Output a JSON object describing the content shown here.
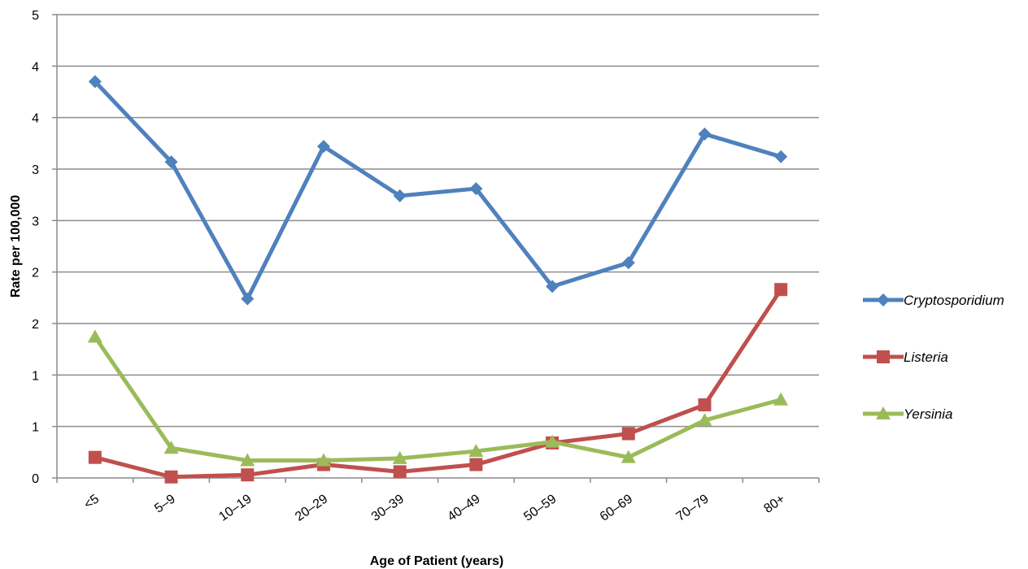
{
  "chart_data": {
    "type": "line",
    "title": "",
    "xlabel": "Age of Patient (years)",
    "ylabel": "Rate per 100,000",
    "categories": [
      "<5",
      "5–9",
      "10–19",
      "20–29",
      "30–39",
      "40–49",
      "50–59",
      "60–69",
      "70–79",
      "80+"
    ],
    "y_tick_labels": [
      "0",
      "1",
      "1",
      "2",
      "2",
      "3",
      "3",
      "4",
      "4",
      "5"
    ],
    "ylim": [
      0,
      4.5
    ],
    "y_tick_step": 0.5,
    "grid": true,
    "legend_position": "right",
    "series": [
      {
        "name": "Cryptosporidium",
        "color": "#4F81BD",
        "marker": "diamond",
        "values": [
          3.85,
          3.07,
          1.74,
          3.22,
          2.74,
          2.81,
          1.86,
          2.09,
          3.34,
          3.12
        ]
      },
      {
        "name": "Listeria",
        "color": "#C0504D",
        "marker": "square",
        "values": [
          0.2,
          0.01,
          0.03,
          0.13,
          0.06,
          0.13,
          0.34,
          0.43,
          0.71,
          1.83
        ]
      },
      {
        "name": "Yersinia",
        "color": "#9BBB59",
        "marker": "triangle",
        "values": [
          1.37,
          0.29,
          0.17,
          0.17,
          0.19,
          0.26,
          0.35,
          0.2,
          0.56,
          0.76
        ]
      }
    ]
  }
}
